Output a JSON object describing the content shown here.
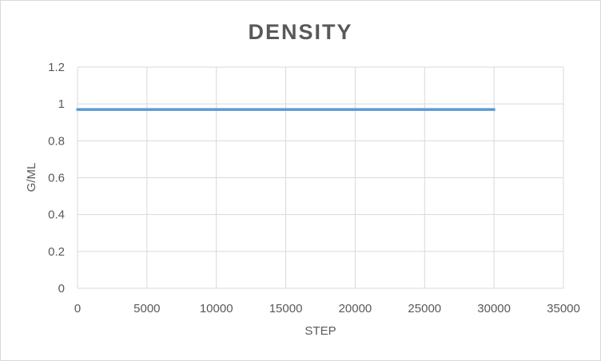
{
  "chart_data": {
    "type": "line",
    "title": "DENSITY",
    "xlabel": "STEP",
    "ylabel": "G/ML",
    "xlim": [
      0,
      35000
    ],
    "ylim": [
      0,
      1.2
    ],
    "x_ticks": [
      "0",
      "5000",
      "10000",
      "15000",
      "20000",
      "25000",
      "30000",
      "35000"
    ],
    "y_ticks": [
      "0",
      "0.2",
      "0.4",
      "0.6",
      "0.8",
      "1",
      "1.2"
    ],
    "grid": true,
    "legend": "none",
    "series": [
      {
        "color": "#5b9bd5",
        "x": [
          0,
          5000,
          10000,
          15000,
          20000,
          25000,
          30000
        ],
        "y": [
          0.97,
          0.97,
          0.97,
          0.97,
          0.97,
          0.97,
          0.97
        ]
      }
    ]
  }
}
